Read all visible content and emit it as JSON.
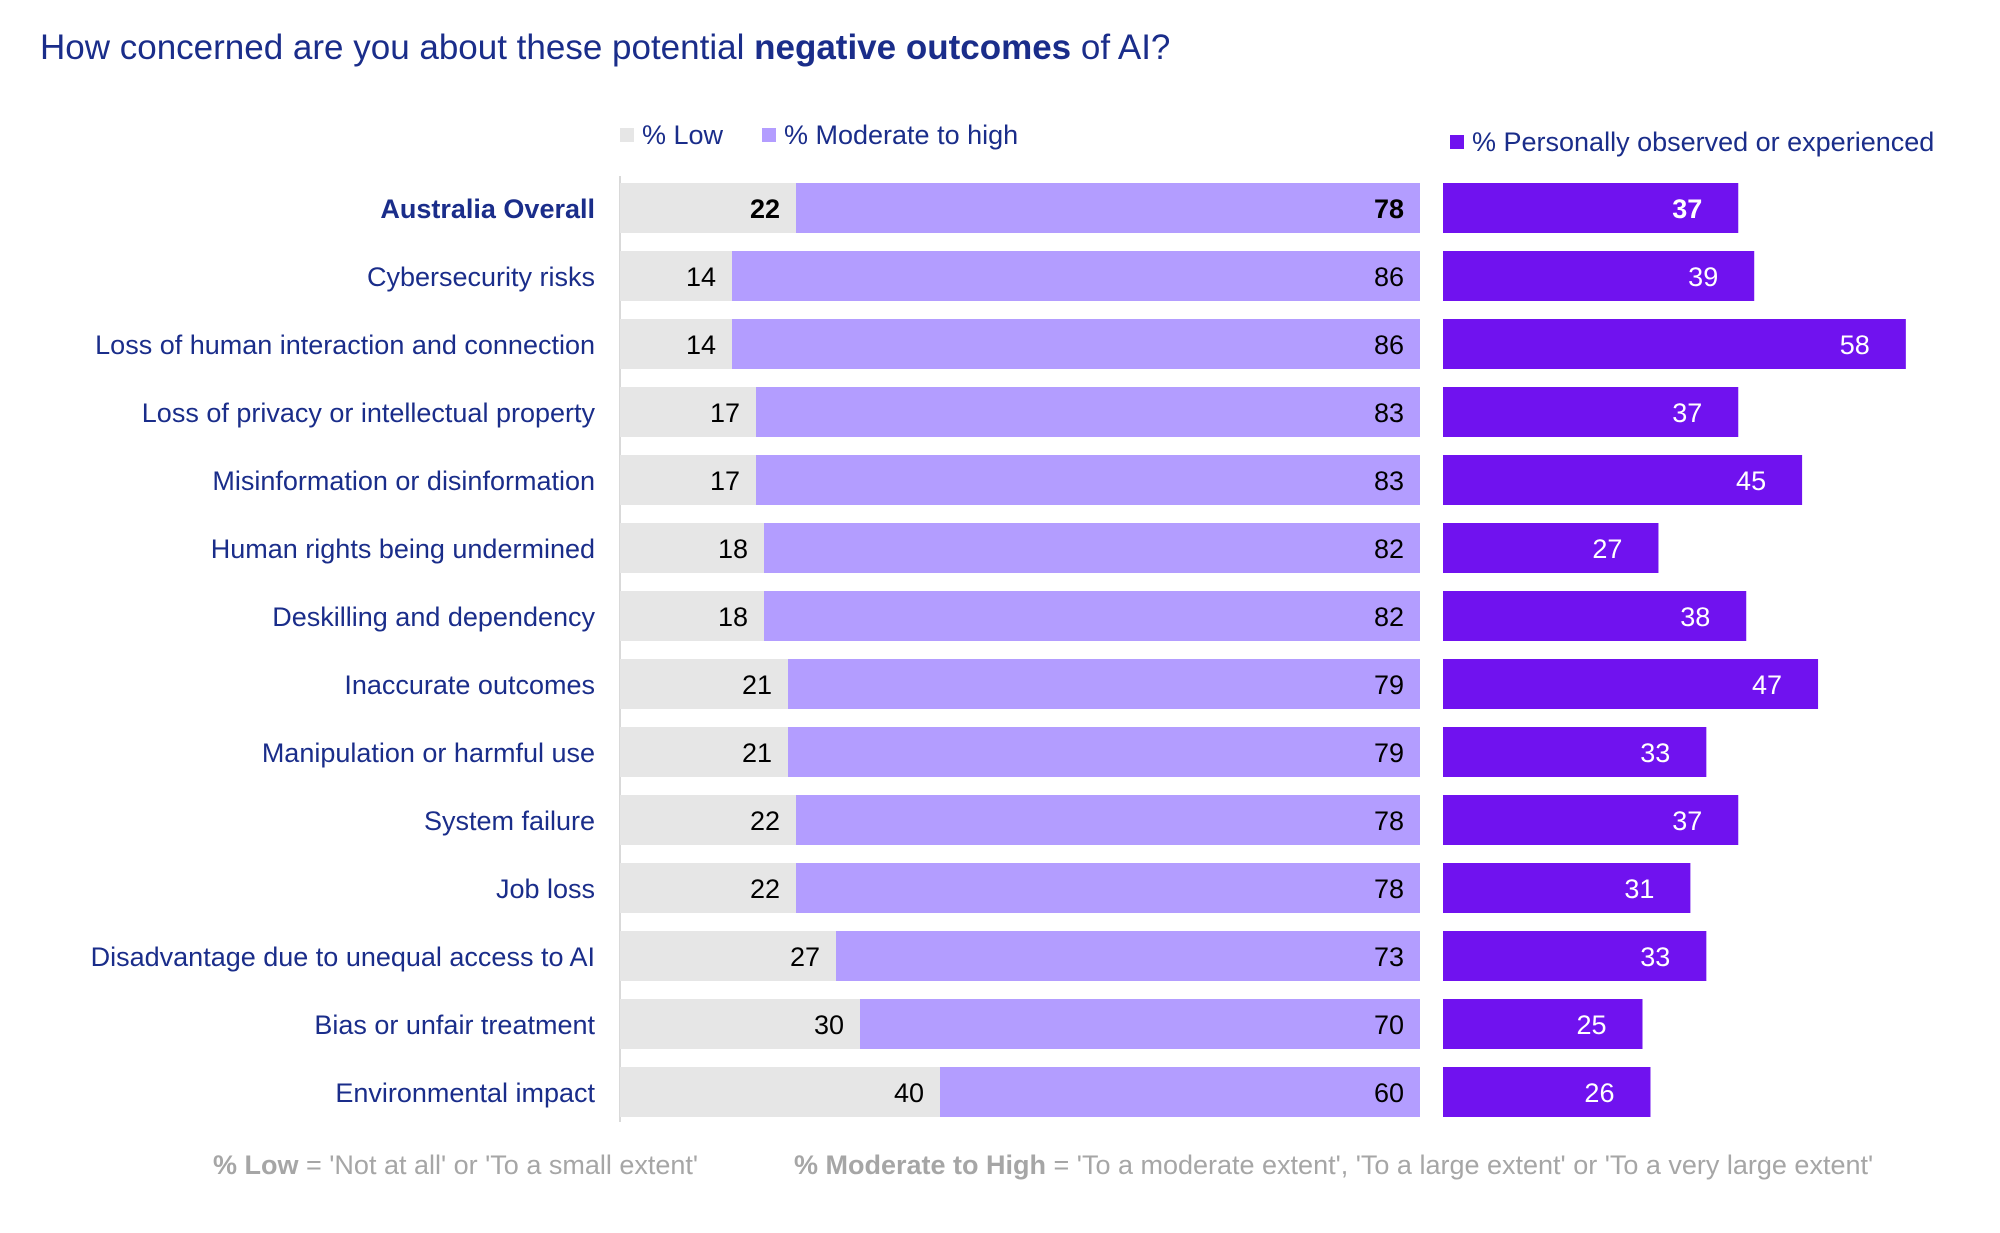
{
  "chart_data": {
    "type": "bar",
    "title": {
      "prefix": "How concerned are you about these potential ",
      "emphasis": "negative outcomes",
      "suffix": " of AI?"
    },
    "legend": {
      "low": "% Low",
      "moderate_high": "% Moderate to high",
      "observed": "% Personally observed or experienced"
    },
    "colors": {
      "low": "#e6e6e6",
      "moderate_high": "#b39dff",
      "observed": "#7012ef",
      "category_text": "#1a2d8a",
      "footnote": "#a6a6a6"
    },
    "categories": [
      "Australia Overall",
      "Cybersecurity risks",
      "Loss of human interaction and connection",
      "Loss of privacy or intellectual property",
      "Misinformation or disinformation",
      "Human rights being undermined",
      "Deskilling and dependency",
      "Inaccurate outcomes",
      "Manipulation or harmful use",
      "System failure",
      "Job loss",
      "Disadvantage due to unequal access to AI",
      "Bias or unfair treatment",
      "Environmental impact"
    ],
    "highlighted_category": "Australia Overall",
    "series": [
      {
        "key": "low",
        "name": "% Low",
        "values": [
          22,
          14,
          14,
          17,
          17,
          18,
          18,
          21,
          21,
          22,
          22,
          27,
          30,
          40
        ]
      },
      {
        "key": "moderate_high",
        "name": "% Moderate to high",
        "values": [
          78,
          86,
          86,
          83,
          83,
          82,
          82,
          79,
          79,
          78,
          78,
          73,
          70,
          60
        ]
      },
      {
        "key": "observed",
        "name": "% Personally observed or experienced",
        "values": [
          37,
          39,
          58,
          37,
          45,
          27,
          38,
          47,
          33,
          37,
          31,
          33,
          25,
          26
        ]
      }
    ],
    "stacked_xlim": [
      0,
      100
    ],
    "observed_xlim": [
      0,
      100
    ]
  },
  "footnote": {
    "low_term": "% Low",
    "low_def": " = 'Not at all' or 'To a small extent'",
    "mod_term": "% Moderate to High",
    "mod_def": " = 'To a moderate extent', 'To a large extent' or 'To a very large extent'"
  }
}
